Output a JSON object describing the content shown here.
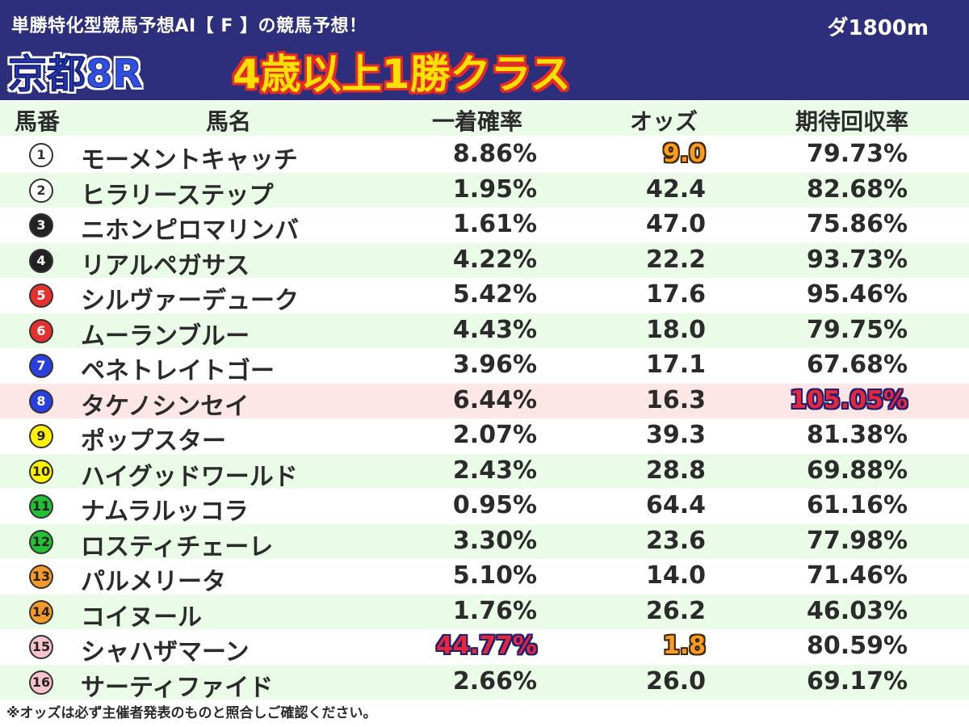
{
  "header": {
    "title": "単勝特化型競馬予想AI【 F 】の競馬予想！",
    "course": "ダ1800m",
    "race_name": "京都8R",
    "race_class": "4歳以上1勝クラス",
    "colors": {
      "background": "#2e2f7c",
      "race_name": "#2e4fe0",
      "race_class": "#ffe000",
      "race_class_outline": "#e52a2a"
    }
  },
  "columns": {
    "num": "馬番",
    "name": "馬名",
    "win_prob": "一着確率",
    "odds": "オッズ",
    "expected_return": "期待回収率"
  },
  "rows": [
    {
      "num": "1",
      "name": "モーメントキャッチ",
      "win_prob": "8.86%",
      "odds": "9.0",
      "expected_return": "79.73%",
      "circle_bg": "#ffffff",
      "circle_fg": "#333333",
      "highlight": "odds"
    },
    {
      "num": "2",
      "name": "ヒラリーステップ",
      "win_prob": "1.95%",
      "odds": "42.4",
      "expected_return": "82.68%",
      "circle_bg": "#ffffff",
      "circle_fg": "#333333"
    },
    {
      "num": "3",
      "name": "ニホンピロマリンバ",
      "win_prob": "1.61%",
      "odds": "47.0",
      "expected_return": "75.86%",
      "circle_bg": "#222222",
      "circle_fg": "#ffffff"
    },
    {
      "num": "4",
      "name": "リアルペガサス",
      "win_prob": "4.22%",
      "odds": "22.2",
      "expected_return": "93.73%",
      "circle_bg": "#222222",
      "circle_fg": "#ffffff"
    },
    {
      "num": "5",
      "name": "シルヴァーデューク",
      "win_prob": "5.42%",
      "odds": "17.6",
      "expected_return": "95.46%",
      "circle_bg": "#e53030",
      "circle_fg": "#ffffff"
    },
    {
      "num": "6",
      "name": "ムーランブルー",
      "win_prob": "4.43%",
      "odds": "18.0",
      "expected_return": "79.75%",
      "circle_bg": "#e53030",
      "circle_fg": "#ffffff"
    },
    {
      "num": "7",
      "name": "ペネトレイトゴー",
      "win_prob": "3.96%",
      "odds": "17.1",
      "expected_return": "67.68%",
      "circle_bg": "#2a3fe0",
      "circle_fg": "#ffffff"
    },
    {
      "num": "8",
      "name": "タケノシンセイ",
      "win_prob": "6.44%",
      "odds": "16.3",
      "expected_return": "105.05%",
      "circle_bg": "#2a3fe0",
      "circle_fg": "#ffffff",
      "highlight": "return",
      "row_highlight": true
    },
    {
      "num": "9",
      "name": "ポップスター",
      "win_prob": "2.07%",
      "odds": "39.3",
      "expected_return": "81.38%",
      "circle_bg": "#fff200",
      "circle_fg": "#222222"
    },
    {
      "num": "10",
      "name": "ハイグッドワールド",
      "win_prob": "2.43%",
      "odds": "28.8",
      "expected_return": "69.88%",
      "circle_bg": "#fff200",
      "circle_fg": "#222222"
    },
    {
      "num": "11",
      "name": "ナムラルッコラ",
      "win_prob": "0.95%",
      "odds": "64.4",
      "expected_return": "61.16%",
      "circle_bg": "#22c032",
      "circle_fg": "#222222"
    },
    {
      "num": "12",
      "name": "ロスティチェーレ",
      "win_prob": "3.30%",
      "odds": "23.6",
      "expected_return": "77.98%",
      "circle_bg": "#22c032",
      "circle_fg": "#222222"
    },
    {
      "num": "13",
      "name": "パルメリータ",
      "win_prob": "5.10%",
      "odds": "14.0",
      "expected_return": "71.46%",
      "circle_bg": "#f59a2a",
      "circle_fg": "#222222"
    },
    {
      "num": "14",
      "name": "コイヌール",
      "win_prob": "1.76%",
      "odds": "26.2",
      "expected_return": "46.03%",
      "circle_bg": "#f59a2a",
      "circle_fg": "#222222"
    },
    {
      "num": "15",
      "name": "シャハザマーン",
      "win_prob": "44.77%",
      "odds": "1.8",
      "expected_return": "80.59%",
      "circle_bg": "#f8c3cd",
      "circle_fg": "#222222",
      "highlight": "prob_odds"
    },
    {
      "num": "16",
      "name": "サーティファイド",
      "win_prob": "2.66%",
      "odds": "26.0",
      "expected_return": "69.17%",
      "circle_bg": "#f8c3cd",
      "circle_fg": "#222222"
    }
  ],
  "footer": {
    "note": "※オッズは必ず主催者発表のものと照合しご確認ください。"
  }
}
